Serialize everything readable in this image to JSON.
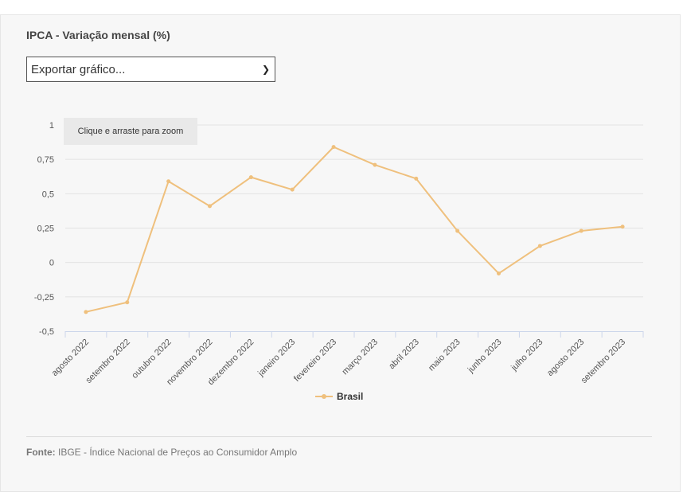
{
  "chart_data": {
    "type": "line",
    "title": "IPCA - Variação mensal (%)",
    "categories": [
      "agosto 2022",
      "setembro 2022",
      "outubro 2022",
      "novembro 2022",
      "dezembro 2022",
      "janeiro 2023",
      "fevereiro 2023",
      "março 2023",
      "abril 2023",
      "maio 2023",
      "junho 2023",
      "julho 2023",
      "agosto 2023",
      "setembro 2023"
    ],
    "series": [
      {
        "name": "Brasil",
        "values": [
          -0.36,
          -0.29,
          0.59,
          0.41,
          0.62,
          0.53,
          0.84,
          0.71,
          0.61,
          0.23,
          -0.08,
          0.12,
          0.23,
          0.26
        ]
      }
    ],
    "yticks": [
      1,
      0.75,
      0.5,
      0.25,
      0,
      -0.25,
      -0.5
    ],
    "ytick_labels": [
      "1",
      "0,75",
      "0,5",
      "0,25",
      "0",
      "-0,25",
      "-0,5"
    ],
    "ylim": [
      -0.5,
      1
    ],
    "grid": true,
    "legend": "bottom-center",
    "color": "#efc07d"
  },
  "export": {
    "label": "Exportar gráfico..."
  },
  "zoom_hint": "Clique e arraste para zoom",
  "source": {
    "label": "Fonte:",
    "text": " IBGE - Índice Nacional de Preços ao Consumidor Amplo"
  }
}
